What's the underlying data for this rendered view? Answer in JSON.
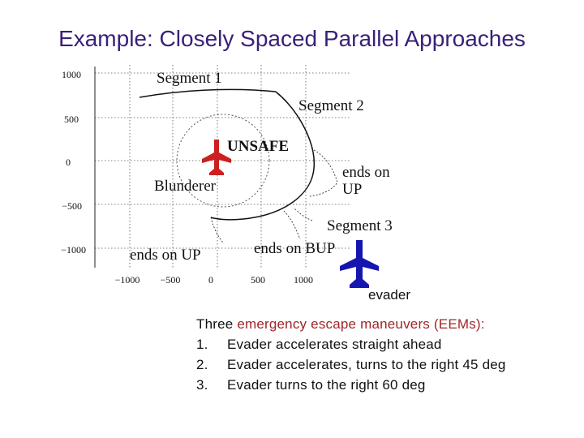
{
  "title": "Example: Closely Spaced Parallel Approaches",
  "diagram": {
    "y_ticks": [
      "1000",
      "500",
      "0",
      "−500",
      "−1000"
    ],
    "x_ticks": [
      "−1000",
      "−500",
      "0",
      "500",
      "1000"
    ],
    "labels": {
      "segment1": "Segment 1",
      "segment2": "Segment 2",
      "segment3": "Segment 3",
      "unsafe": "UNSAFE",
      "blunderer": "Blunderer",
      "ends_on_up_right_1": "ends on",
      "ends_on_up_right_2": "UP",
      "ends_on_bup": "ends on BUP",
      "ends_on_up_left": "ends on UP"
    },
    "colors": {
      "blunderer_plane": "#cc1f1f",
      "evader_plane": "#1515b0"
    },
    "icons": {
      "blunderer": "airplane-icon",
      "evader": "airplane-icon"
    }
  },
  "evader_label": "evader",
  "caption": {
    "intro_prefix": "Three ",
    "intro_highlight": "emergency escape maneuvers (EEMs):",
    "items": [
      {
        "num": "1.",
        "text": "Evader accelerates straight ahead"
      },
      {
        "num": "2.",
        "text": "Evader accelerates, turns to the right 45 deg"
      },
      {
        "num": "3.",
        "text": "Evader turns to the right 60 deg"
      }
    ]
  }
}
